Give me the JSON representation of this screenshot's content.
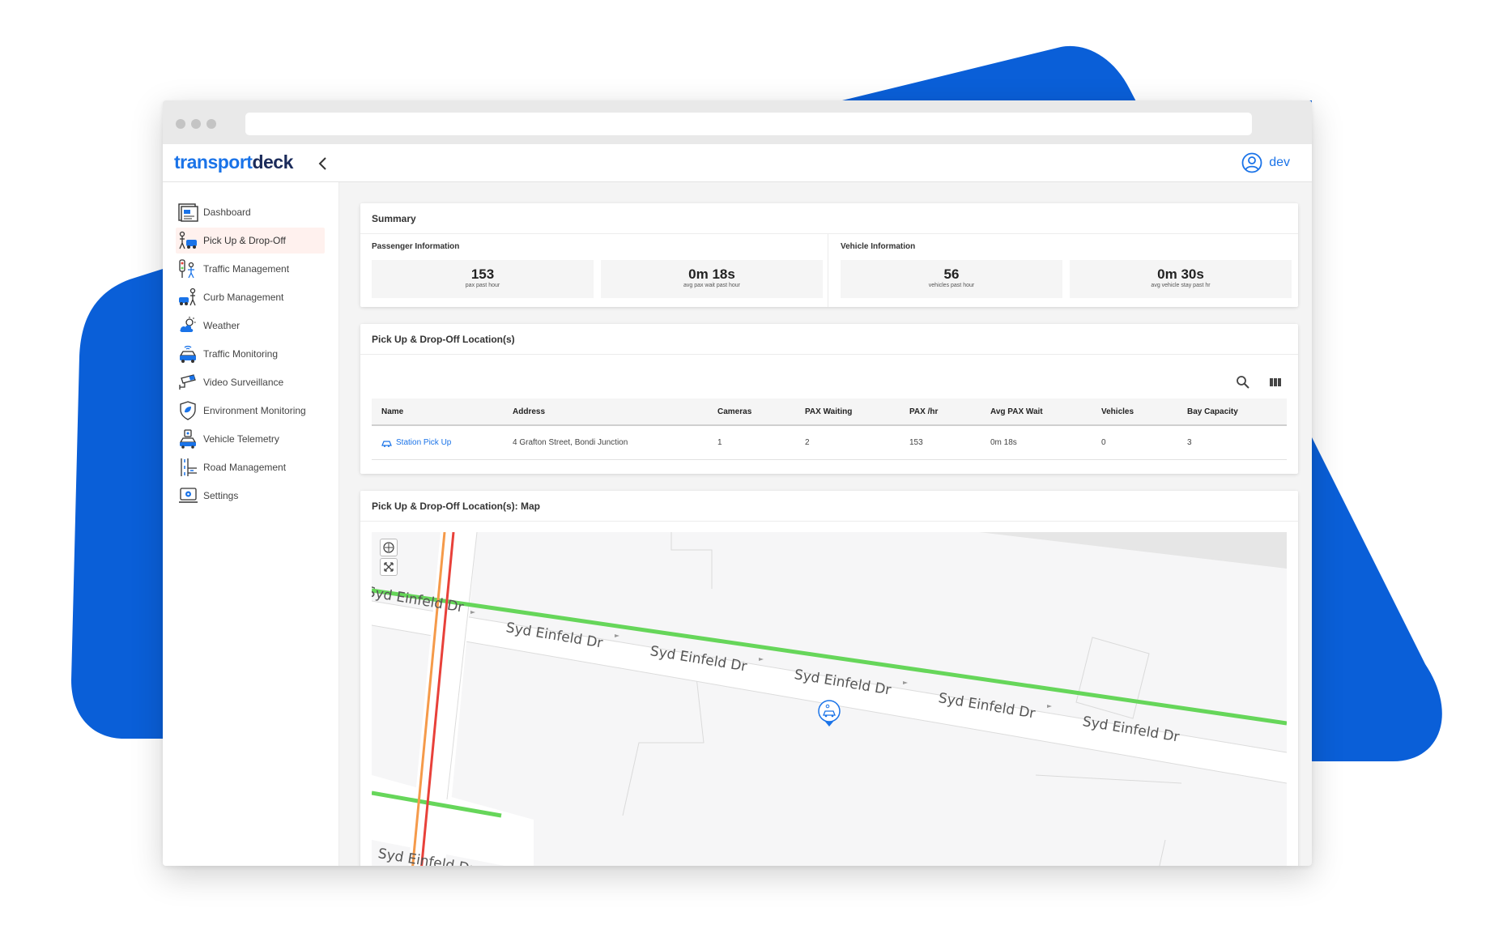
{
  "app": {
    "logo_part1": "transport",
    "logo_part2": "deck",
    "user_label": "dev"
  },
  "sidebar": {
    "items": [
      {
        "label": "Dashboard",
        "icon": "dashboard-icon"
      },
      {
        "label": "Pick Up & Drop-Off",
        "icon": "pickup-dropoff-icon",
        "active": true
      },
      {
        "label": "Traffic Management",
        "icon": "traffic-management-icon"
      },
      {
        "label": "Curb Management",
        "icon": "curb-management-icon"
      },
      {
        "label": "Weather",
        "icon": "weather-icon"
      },
      {
        "label": "Traffic Monitoring",
        "icon": "traffic-monitoring-icon"
      },
      {
        "label": "Video Surveillance",
        "icon": "video-surveillance-icon"
      },
      {
        "label": "Environment Monitoring",
        "icon": "environment-monitoring-icon"
      },
      {
        "label": "Vehicle Telemetry",
        "icon": "vehicle-telemetry-icon"
      },
      {
        "label": "Road Management",
        "icon": "road-management-icon"
      },
      {
        "label": "Settings",
        "icon": "settings-icon"
      }
    ]
  },
  "summary": {
    "title": "Summary",
    "passenger": {
      "heading": "Passenger Information",
      "stats": [
        {
          "value": "153",
          "label": "pax past hour"
        },
        {
          "value": "0m 18s",
          "label": "avg pax wait past hour"
        }
      ]
    },
    "vehicle": {
      "heading": "Vehicle Information",
      "stats": [
        {
          "value": "56",
          "label": "vehicles past hour"
        },
        {
          "value": "0m 30s",
          "label": "avg vehicle stay past hr"
        }
      ]
    }
  },
  "locations": {
    "title": "Pick Up & Drop-Off Location(s)",
    "columns": [
      "Name",
      "Address",
      "Cameras",
      "PAX Waiting",
      "PAX /hr",
      "Avg PAX Wait",
      "Vehicles",
      "Bay Capacity"
    ],
    "rows": [
      [
        "Station Pick Up",
        "4 Grafton Street, Bondi Junction",
        "1",
        "2",
        "153",
        "0m 18s",
        "0",
        "3"
      ]
    ]
  },
  "map": {
    "title": "Pick Up & Drop-Off Location(s): Map",
    "street_name": "Syd Einfeld Dr",
    "street_labels": [
      "Syd Einfeld Dr",
      "Syd Einfeld Dr",
      "Syd Einfeld Dr",
      "Syd Einfeld Dr",
      "Syd Einfeld Dr",
      "Syd Einfeld Dr",
      "Syd Einfeld Dr"
    ]
  },
  "colors": {
    "brand_blue": "#1a73e8",
    "background_shape": "#0a5fd8",
    "active_nav_bg": "#fff1ee",
    "route_green": "#66d65a",
    "route_orange": "#f59a4a",
    "route_red": "#e8413a"
  }
}
